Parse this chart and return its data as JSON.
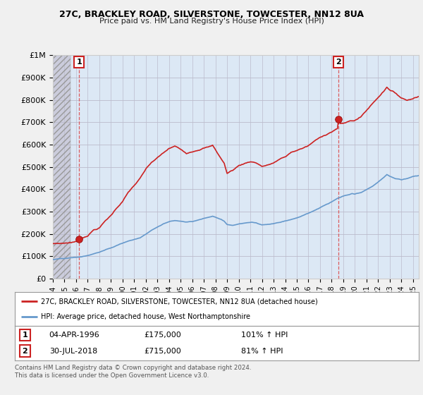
{
  "title": "27C, BRACKLEY ROAD, SILVERSTONE, TOWCESTER, NN12 8UA",
  "subtitle": "Price paid vs. HM Land Registry's House Price Index (HPI)",
  "ylim": [
    0,
    1000000
  ],
  "yticks": [
    0,
    100000,
    200000,
    300000,
    400000,
    500000,
    600000,
    700000,
    800000,
    900000,
    1000000
  ],
  "ytick_labels": [
    "£0",
    "£100K",
    "£200K",
    "£300K",
    "£400K",
    "£500K",
    "£600K",
    "£700K",
    "£800K",
    "£900K",
    "£1M"
  ],
  "red_line_color": "#cc2222",
  "blue_line_color": "#6699cc",
  "grid_color": "#cccccc",
  "plot_bg_color": "#dce8f5",
  "fig_bg_color": "#f0f0f0",
  "legend_label_red": "27C, BRACKLEY ROAD, SILVERSTONE, TOWCESTER, NN12 8UA (detached house)",
  "legend_label_blue": "HPI: Average price, detached house, West Northamptonshire",
  "annotation1_date": "04-APR-1996",
  "annotation1_price": "£175,000",
  "annotation1_hpi": "101% ↑ HPI",
  "annotation2_date": "30-JUL-2018",
  "annotation2_price": "£715,000",
  "annotation2_hpi": "81% ↑ HPI",
  "footnote": "Contains HM Land Registry data © Crown copyright and database right 2024.\nThis data is licensed under the Open Government Licence v3.0.",
  "sale1_x": 1996.25,
  "sale1_y": 175000,
  "sale2_x": 2018.58,
  "sale2_y": 715000,
  "xmin": 1994.0,
  "xmax": 2025.5,
  "hatch_end": 1995.5
}
